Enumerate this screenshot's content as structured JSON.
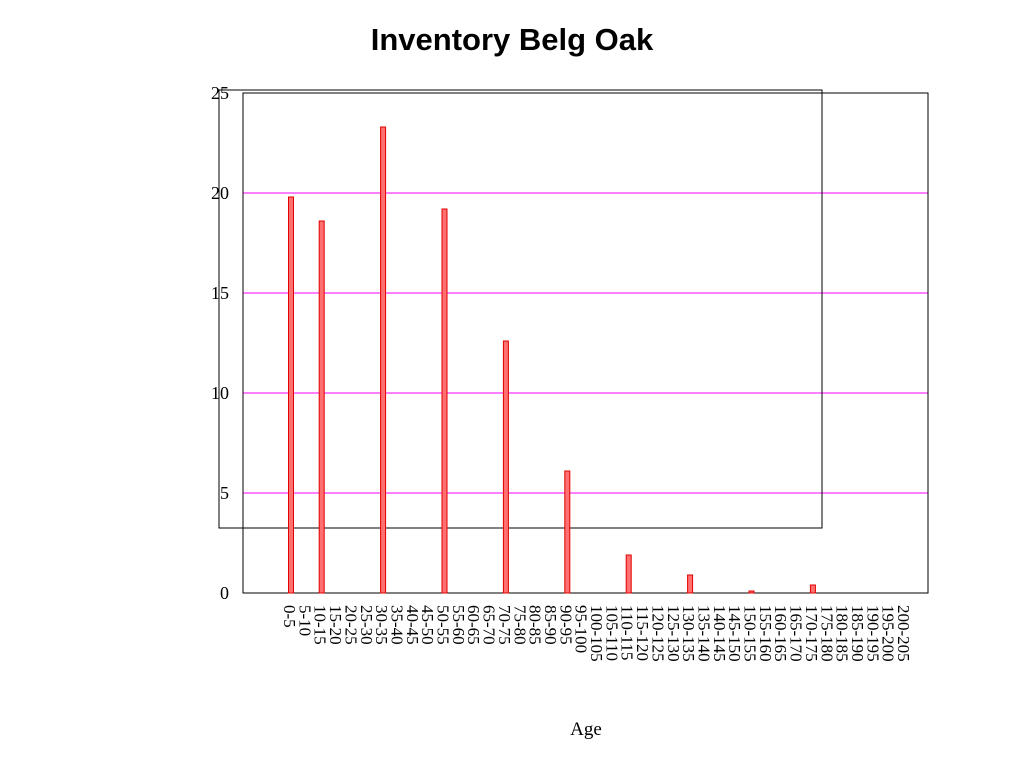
{
  "chart_data": {
    "type": "bar",
    "title": "Inventory Belg Oak",
    "xlabel": "Age",
    "ylabel": "",
    "ylim": [
      0,
      25
    ],
    "yticks": [
      0,
      5,
      10,
      15,
      20,
      25
    ],
    "grid": true,
    "colors": {
      "bar_fill": "#ff7070",
      "bar_stroke": "#e00000",
      "grid": "#ff00ff",
      "frame": "#000000"
    },
    "categories": [
      "0-5",
      "5-10",
      "10-15",
      "15-20",
      "20-25",
      "25-30",
      "30-35",
      "35-40",
      "40-45",
      "45-50",
      "50-55",
      "55-60",
      "60-65",
      "65-70",
      "70-75",
      "75-80",
      "80-85",
      "85-90",
      "90-95",
      "95-100",
      "100-105",
      "105-110",
      "110-115",
      "115-120",
      "120-125",
      "125-130",
      "130-135",
      "135-140",
      "140-145",
      "145-150",
      "150-155",
      "155-160",
      "160-165",
      "165-170",
      "170-175",
      "175-180",
      "180-185",
      "185-190",
      "190-195",
      "195-200",
      "200-205"
    ],
    "values": [
      19.8,
      0,
      18.6,
      0,
      0,
      0,
      23.3,
      0,
      0,
      0,
      19.2,
      0,
      0,
      0,
      12.6,
      0,
      0,
      0,
      6.1,
      0,
      0,
      0,
      1.9,
      0,
      0,
      0,
      0.9,
      0,
      0,
      0,
      0.1,
      0,
      0,
      0,
      0.4,
      0,
      0,
      0,
      0,
      0,
      0
    ]
  }
}
